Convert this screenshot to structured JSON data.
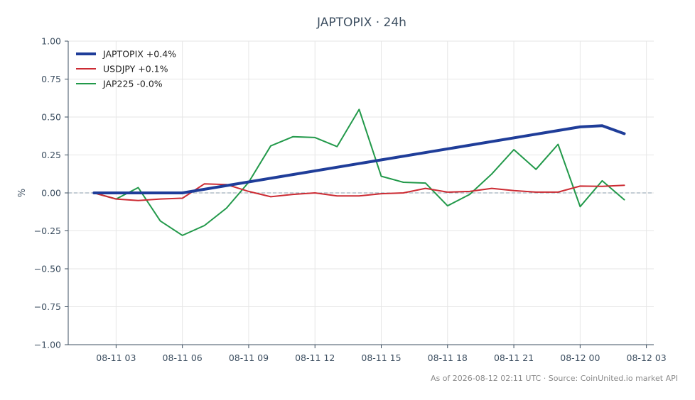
{
  "chart_data": {
    "type": "line",
    "title": "JAPTOPIX · 24h",
    "xlabel": "",
    "ylabel": "%",
    "ylim": [
      -1.0,
      1.0
    ],
    "yticks": [
      1.0,
      0.75,
      0.5,
      0.25,
      0.0,
      -0.25,
      -0.5,
      -0.75,
      -1.0
    ],
    "ytick_labels": [
      "1.00",
      "0.75",
      "0.50",
      "0.25",
      "0.00",
      "−0.25",
      "−0.50",
      "−0.75",
      "−1.00"
    ],
    "xlim": [
      "2026-08-11 00:50",
      "2026-08-12 03:20"
    ],
    "xticks": [
      "2026-08-11 03:00",
      "2026-08-11 06:00",
      "2026-08-11 09:00",
      "2026-08-11 12:00",
      "2026-08-11 15:00",
      "2026-08-11 18:00",
      "2026-08-11 21:00",
      "2026-08-12 00:00",
      "2026-08-12 03:00"
    ],
    "xtick_labels": [
      "08-11 03",
      "08-11 06",
      "08-11 09",
      "08-11 12",
      "08-11 15",
      "08-11 18",
      "08-11 21",
      "08-12 00",
      "08-12 03"
    ],
    "grid": true,
    "zero_line": true,
    "legend_position": "upper-left",
    "series": [
      {
        "name": "JAPTOPIX +0.4%",
        "color": "#1f3d99",
        "width": 4,
        "x": [
          "2026-08-11 02:00",
          "2026-08-11 06:00",
          "2026-08-12 00:00",
          "2026-08-12 01:00",
          "2026-08-12 02:00"
        ],
        "y": [
          0.0,
          0.0,
          0.435,
          0.443,
          0.39
        ]
      },
      {
        "name": "USDJPY +0.1%",
        "color": "#cc2b33",
        "width": 2,
        "x": [
          "2026-08-11 02:00",
          "2026-08-11 03:00",
          "2026-08-11 04:00",
          "2026-08-11 05:00",
          "2026-08-11 06:00",
          "2026-08-11 07:00",
          "2026-08-11 08:00",
          "2026-08-11 09:00",
          "2026-08-11 10:00",
          "2026-08-11 11:00",
          "2026-08-11 12:00",
          "2026-08-11 13:00",
          "2026-08-11 14:00",
          "2026-08-11 15:00",
          "2026-08-11 16:00",
          "2026-08-11 17:00",
          "2026-08-11 18:00",
          "2026-08-11 19:00",
          "2026-08-11 20:00",
          "2026-08-11 21:00",
          "2026-08-11 22:00",
          "2026-08-11 23:00",
          "2026-08-12 00:00",
          "2026-08-12 01:00",
          "2026-08-12 02:00"
        ],
        "y": [
          0.0,
          -0.04,
          -0.05,
          -0.04,
          -0.035,
          0.06,
          0.055,
          0.01,
          -0.025,
          -0.01,
          0.0,
          -0.02,
          -0.02,
          -0.005,
          0.0,
          0.03,
          0.005,
          0.01,
          0.03,
          0.015,
          0.005,
          0.005,
          0.045,
          0.043,
          0.05
        ]
      },
      {
        "name": "JAP225 -0.0%",
        "color": "#22994a",
        "width": 2,
        "x": [
          "2026-08-11 02:00",
          "2026-08-11 03:00",
          "2026-08-11 04:00",
          "2026-08-11 05:00",
          "2026-08-11 06:00",
          "2026-08-11 07:00",
          "2026-08-11 08:00",
          "2026-08-11 09:00",
          "2026-08-11 10:00",
          "2026-08-11 11:00",
          "2026-08-11 12:00",
          "2026-08-11 13:00",
          "2026-08-11 14:00",
          "2026-08-11 15:00",
          "2026-08-11 16:00",
          "2026-08-11 17:00",
          "2026-08-11 18:00",
          "2026-08-11 19:00",
          "2026-08-11 20:00",
          "2026-08-11 21:00",
          "2026-08-11 22:00",
          "2026-08-11 23:00",
          "2026-08-12 00:00",
          "2026-08-12 01:00",
          "2026-08-12 02:00"
        ],
        "y": [
          0.0,
          -0.04,
          0.035,
          -0.185,
          -0.28,
          -0.215,
          -0.1,
          0.07,
          0.31,
          0.37,
          0.365,
          0.305,
          0.55,
          0.11,
          0.07,
          0.065,
          -0.085,
          -0.01,
          0.125,
          0.285,
          0.155,
          0.32,
          -0.09,
          0.08,
          -0.045
        ]
      }
    ]
  },
  "footer": "As of 2026-08-12 02:11 UTC · Source: CoinUnited.io market API",
  "colors": {
    "axis": "#3d4f61",
    "grid": "#e6e6e6",
    "zero_line": "#8a9bab"
  }
}
